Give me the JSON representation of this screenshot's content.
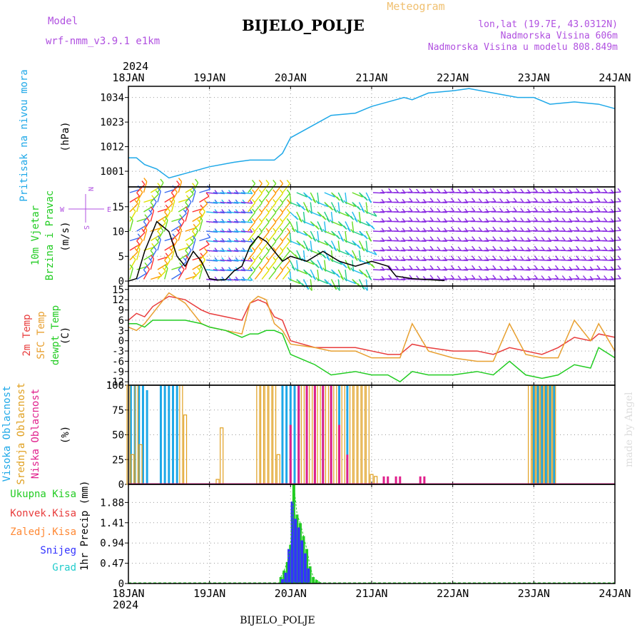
{
  "header": {
    "model_label": "Model",
    "model_name": "wrf-nmm_v3.9.1  e1km",
    "title": "BIJELO_POLJE",
    "product": "Meteogram",
    "lonlat": "lon,lat (19.7E, 43.0312N)",
    "elev": "Nadmorska Visina 606m",
    "elev_model": "Nadmorska Visina u modelu 808.849m",
    "footer": "BIJELO_POLJE",
    "watermark": "made by Angel",
    "year_top": "2024",
    "year_bottom": "2024"
  },
  "colors": {
    "pressure": "#1ea8e8",
    "wind_label": "#22cc22",
    "temp2m": "#e83c3c",
    "sfc": "#e8a030",
    "dew": "#22cc22",
    "high_cloud": "#1ea8e8",
    "mid_cloud": "#e0a020",
    "low_cloud": "#e0208c",
    "precip_total": "#22cc22",
    "precip_conv": "#e83c3c",
    "precip_frz": "#ff8833",
    "precip_snow": "#3333ff",
    "precip_grad": "#22cccc",
    "title_purple": "#b050e0",
    "meteogram_label": "#f0c070",
    "barb_purple": "#8a2be2"
  },
  "x_ticks": [
    "18JAN",
    "19JAN",
    "20JAN",
    "21JAN",
    "22JAN",
    "23JAN",
    "24JAN"
  ],
  "panels": [
    {
      "id": "pressure",
      "labels": [
        "Pritisak na nivou mora"
      ],
      "label_colors": [
        "#1ea8e8"
      ],
      "unit": "(hPa)"
    },
    {
      "id": "wind",
      "labels": [
        "10m Vjetar",
        "Brzina i Pravac"
      ],
      "label_colors": [
        "#22cc22",
        "#22cc22"
      ],
      "unit": "(m/s)"
    },
    {
      "id": "temp",
      "labels": [
        "2m Temp",
        "SFC Temp",
        "dewpt Temp"
      ],
      "label_colors": [
        "#e83c3c",
        "#e8a030",
        "#22cc22"
      ],
      "unit": "(C)"
    },
    {
      "id": "cloud",
      "labels": [
        "Visoka Oblacnost",
        "Srednja Oblacnost",
        "Niska Oblacnost"
      ],
      "label_colors": [
        "#1ea8e8",
        "#e0a020",
        "#e0208c"
      ],
      "unit": "(%)"
    },
    {
      "id": "precip",
      "labels": [
        "Ukupna Kisa",
        "Konvek.Kisa",
        "Zaledj.Kisa",
        "Snijeg",
        "Grad"
      ],
      "label_colors": [
        "#22cc22",
        "#e83c3c",
        "#ff8833",
        "#3333ff",
        "#22cccc"
      ],
      "unit": "1hr Precip (mm)"
    }
  ],
  "compass": {
    "w": "W",
    "e": "E",
    "n": "N",
    "s": "S"
  },
  "chart_data": [
    {
      "type": "line",
      "title": "Pritisak na nivou mora",
      "ylabel": "(hPa)",
      "x_unit": "days since 18JAN 00Z",
      "ylim": [
        994,
        1039
      ],
      "yticks": [
        1001,
        1012,
        1023,
        1034
      ],
      "series": [
        {
          "name": "Pritisak na nivou mora",
          "x": [
            0,
            0.1,
            0.2,
            0.35,
            0.5,
            0.8,
            1.0,
            1.3,
            1.5,
            1.7,
            1.8,
            1.9,
            2.0,
            2.2,
            2.5,
            2.8,
            3.0,
            3.2,
            3.4,
            3.5,
            3.7,
            4.0,
            4.2,
            4.5,
            4.8,
            5.0,
            5.2,
            5.5,
            5.8,
            6.0
          ],
          "y": [
            1007,
            1007,
            1004,
            1002,
            998,
            1001,
            1003,
            1005,
            1006,
            1006,
            1006,
            1009,
            1016,
            1020,
            1026,
            1027,
            1030,
            1032,
            1034,
            1033,
            1036,
            1037,
            1038,
            1036,
            1034,
            1034,
            1031,
            1032,
            1031,
            1029
          ]
        }
      ]
    },
    {
      "type": "line",
      "title": "10m Vjetar Brzina i Pravac",
      "ylabel": "(m/s)",
      "x_unit": "days since 18JAN 00Z",
      "ylim": [
        -1,
        19
      ],
      "yticks": [
        0,
        5,
        10,
        15
      ],
      "series": [
        {
          "name": "10m Vjetar",
          "x": [
            0,
            0.1,
            0.2,
            0.35,
            0.5,
            0.6,
            0.7,
            0.8,
            0.9,
            1.0,
            1.1,
            1.2,
            1.3,
            1.4,
            1.5,
            1.6,
            1.7,
            1.8,
            1.9,
            2.0,
            2.2,
            2.4,
            2.6,
            2.8,
            3.0,
            3.2,
            3.3,
            3.5,
            3.7,
            3.9
          ],
          "y": [
            0,
            0.5,
            6,
            12,
            10,
            5,
            3,
            6,
            4,
            0.5,
            0.2,
            0.3,
            2,
            3,
            7,
            9,
            8,
            6,
            4,
            5,
            4,
            6,
            4,
            3,
            4,
            3,
            1,
            0.5,
            0.3,
            0.1
          ]
        }
      ]
    },
    {
      "type": "line",
      "title": "2m Temp / SFC Temp / dewpt Temp",
      "ylabel": "(C)",
      "x_unit": "days since 18JAN 00Z",
      "ylim": [
        -13,
        16
      ],
      "yticks": [
        -12,
        -9,
        -6,
        -3,
        0,
        3,
        6,
        9,
        12,
        15
      ],
      "series": [
        {
          "name": "2m Temp",
          "x": [
            0,
            0.1,
            0.2,
            0.3,
            0.5,
            0.7,
            0.9,
            1.0,
            1.2,
            1.4,
            1.5,
            1.6,
            1.7,
            1.8,
            1.9,
            2.0,
            2.3,
            2.5,
            2.8,
            3.0,
            3.2,
            3.35,
            3.5,
            3.7,
            4.0,
            4.3,
            4.5,
            4.7,
            4.9,
            5.1,
            5.3,
            5.5,
            5.7,
            5.8,
            6.0
          ],
          "y": [
            6,
            8,
            7,
            10,
            13,
            12,
            9,
            8,
            7,
            6,
            11,
            12,
            11,
            7,
            6,
            0,
            -2,
            -2,
            -2,
            -3,
            -4,
            -4,
            -1,
            -2,
            -3,
            -3,
            -4,
            -2,
            -3,
            -4,
            -2,
            1,
            0,
            2,
            1
          ]
        },
        {
          "name": "SFC Temp",
          "x": [
            0,
            0.1,
            0.2,
            0.3,
            0.5,
            0.7,
            0.9,
            1.0,
            1.2,
            1.4,
            1.5,
            1.6,
            1.7,
            1.8,
            1.9,
            2.0,
            2.3,
            2.5,
            2.8,
            3.0,
            3.2,
            3.35,
            3.5,
            3.7,
            4.0,
            4.3,
            4.5,
            4.7,
            4.9,
            5.1,
            5.3,
            5.5,
            5.7,
            5.8,
            6.0
          ],
          "y": [
            4,
            3,
            5,
            8,
            14,
            11,
            5,
            4,
            3,
            2,
            11,
            13,
            12,
            5,
            3,
            -1,
            -2,
            -3,
            -3,
            -5,
            -5,
            -5,
            5,
            -3,
            -5,
            -6,
            -6,
            5,
            -4,
            -5,
            -5,
            6,
            0,
            5,
            -3
          ]
        },
        {
          "name": "dewpt Temp",
          "x": [
            0,
            0.1,
            0.2,
            0.3,
            0.5,
            0.7,
            0.9,
            1.0,
            1.2,
            1.4,
            1.5,
            1.6,
            1.7,
            1.8,
            1.9,
            2.0,
            2.3,
            2.5,
            2.8,
            3.0,
            3.2,
            3.35,
            3.5,
            3.7,
            4.0,
            4.3,
            4.5,
            4.7,
            4.9,
            5.1,
            5.3,
            5.5,
            5.7,
            5.8,
            6.0
          ],
          "y": [
            5,
            5,
            4,
            6,
            6,
            6,
            5,
            4,
            3,
            1,
            2,
            2,
            3,
            3,
            2,
            -4,
            -7,
            -10,
            -9,
            -10,
            -10,
            -12,
            -9,
            -10,
            -10,
            -9,
            -10,
            -6,
            -10,
            -11,
            -10,
            -7,
            -8,
            -2,
            -5
          ]
        }
      ]
    },
    {
      "type": "bar",
      "title": "Oblacnost",
      "ylabel": "(%)",
      "x_unit": "days since 18JAN 00Z",
      "ylim": [
        0,
        100
      ],
      "yticks": [
        0,
        25,
        50,
        75,
        100
      ],
      "series": [
        {
          "name": "Visoka Oblacnost",
          "x": [
            0.03,
            0.08,
            0.13,
            0.18,
            0.23,
            0.4,
            0.45,
            0.5,
            0.55,
            0.6,
            1.9,
            1.95,
            2.0,
            2.05,
            2.1,
            2.2,
            2.3,
            2.4,
            2.5,
            2.6,
            2.7,
            5.0,
            5.05,
            5.1,
            5.15,
            5.2,
            5.25
          ],
          "y": [
            100,
            100,
            100,
            100,
            95,
            100,
            100,
            100,
            100,
            100,
            100,
            100,
            100,
            100,
            100,
            100,
            100,
            100,
            100,
            100,
            100,
            100,
            100,
            100,
            100,
            100,
            100
          ]
        },
        {
          "name": "Srednja Oblacnost",
          "x": [
            0.0,
            0.05,
            0.1,
            0.15,
            0.65,
            0.7,
            1.1,
            1.15,
            1.6,
            1.65,
            1.7,
            1.75,
            1.8,
            1.85,
            2.15,
            2.25,
            2.35,
            2.45,
            2.55,
            2.65,
            2.75,
            2.8,
            2.85,
            2.9,
            2.95,
            3.0,
            3.05,
            4.95,
            5.0,
            5.05,
            5.1,
            5.15,
            5.2,
            5.25
          ],
          "y": [
            100,
            30,
            100,
            40,
            100,
            70,
            5,
            57,
            100,
            100,
            100,
            100,
            100,
            30,
            100,
            100,
            100,
            100,
            100,
            100,
            100,
            100,
            100,
            100,
            100,
            10,
            8,
            100,
            100,
            100,
            100,
            100,
            100,
            100
          ]
        },
        {
          "name": "Niska Oblacnost",
          "x": [
            2.0,
            2.1,
            2.2,
            2.3,
            2.4,
            2.5,
            2.6,
            2.7,
            3.15,
            3.2,
            3.3,
            3.35,
            3.6,
            3.65
          ],
          "y": [
            60,
            100,
            100,
            100,
            100,
            100,
            60,
            30,
            8,
            8,
            8,
            8,
            8,
            8
          ]
        }
      ]
    },
    {
      "type": "bar",
      "title": "1hr Precip",
      "ylabel": "1hr Precip (mm)",
      "x_unit": "days since 18JAN 00Z",
      "ylim": [
        0,
        2.3
      ],
      "yticks": [
        0,
        0.47,
        0.94,
        1.41,
        1.88
      ],
      "series": [
        {
          "name": "Ukupna Kisa",
          "x": [
            1.88,
            1.92,
            1.96,
            2.0,
            2.04,
            2.08,
            2.12,
            2.16,
            2.2,
            2.24,
            2.28,
            2.32,
            2.36
          ],
          "y": [
            0.15,
            0.3,
            0.5,
            0.9,
            2.3,
            1.6,
            1.4,
            1.1,
            0.8,
            0.4,
            0.15,
            0.08,
            0.03
          ]
        },
        {
          "name": "Snijeg",
          "x": [
            1.9,
            1.94,
            1.98,
            2.02,
            2.06,
            2.1,
            2.14,
            2.18,
            2.22
          ],
          "y": [
            0.1,
            0.25,
            0.8,
            1.9,
            1.5,
            1.3,
            1.0,
            0.7,
            0.35
          ]
        }
      ]
    }
  ]
}
